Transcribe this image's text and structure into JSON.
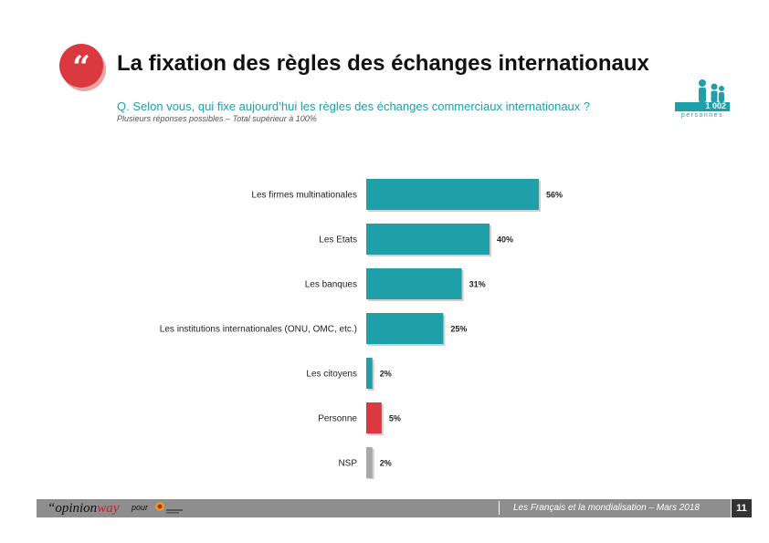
{
  "header": {
    "title": "La fixation des règles des échanges internationaux",
    "question": "Q. Selon vous, qui fixe aujourd’hui les règles des échanges commerciaux internationaux ?",
    "note": "Plusieurs réponses possibles – Total supérieur à 100%",
    "quote_glyph": "“",
    "sample_count": "1 002",
    "sample_label": "personnes",
    "icon": "people-icon"
  },
  "colors": {
    "accent": "#1f9fa8",
    "highlight": "#d9393f",
    "neutral": "#a8a8a8"
  },
  "chart_data": {
    "type": "bar",
    "orientation": "horizontal",
    "categories": [
      "Les firmes multinationales",
      "Les Etats",
      "Les banques",
      "Les institutions internationales (ONU, OMC, etc.)",
      "Les citoyens",
      "Personne",
      "NSP"
    ],
    "values": [
      56,
      40,
      31,
      25,
      2,
      5,
      2
    ],
    "value_labels": [
      "56%",
      "40%",
      "31%",
      "25%",
      "2%",
      "5%",
      "2%"
    ],
    "bar_colors": [
      "#1f9fa8",
      "#1f9fa8",
      "#1f9fa8",
      "#1f9fa8",
      "#1f9fa8",
      "#d9393f",
      "#a8a8a8"
    ],
    "xlim": [
      0,
      100
    ],
    "grid": false,
    "legend": "none"
  },
  "footer": {
    "brand_a": "“opinion",
    "brand_b": "way",
    "pour": "pour",
    "study": "Les Français et la mondialisation – Mars 2018",
    "page": "11"
  }
}
